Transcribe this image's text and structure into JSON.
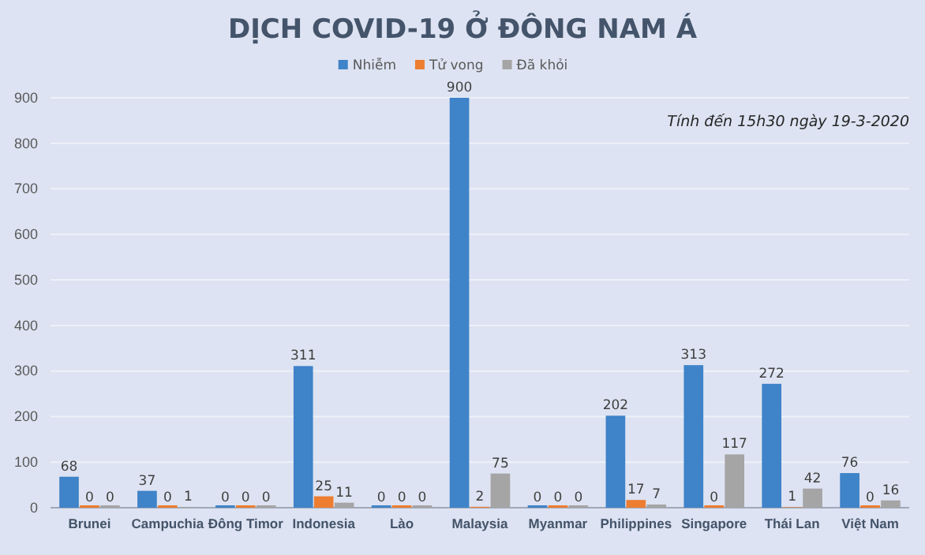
{
  "chart_data": {
    "type": "bar",
    "title": "DỊCH COVID-19 Ở ĐÔNG NAM Á",
    "annotations": [
      "Tính đến 15h30 ngày 19-3-2020"
    ],
    "categories": [
      "Brunei",
      "Campuchia",
      "Đông Timor",
      "Indonesia",
      "Lào",
      "Malaysia",
      "Myanmar",
      "Philippines",
      "Singapore",
      "Thái Lan",
      "Việt Nam"
    ],
    "series": [
      {
        "name": "Nhiễm",
        "color": "#3f83c9",
        "values": [
          68,
          37,
          0,
          311,
          0,
          900,
          0,
          202,
          313,
          272,
          76
        ]
      },
      {
        "name": "Tử vong",
        "color": "#ed7d31",
        "values": [
          0,
          0,
          0,
          25,
          0,
          2,
          0,
          17,
          0,
          1,
          0
        ]
      },
      {
        "name": "Đã khỏi",
        "color": "#a5a5a5",
        "values": [
          0,
          1,
          0,
          11,
          0,
          75,
          0,
          7,
          117,
          42,
          16
        ]
      }
    ],
    "ylim": [
      0,
      900
    ],
    "yticks": [
      0,
      100,
      200,
      300,
      400,
      500,
      600,
      700,
      800,
      900
    ],
    "grid": "y",
    "legend": "top",
    "data_labels": true
  }
}
